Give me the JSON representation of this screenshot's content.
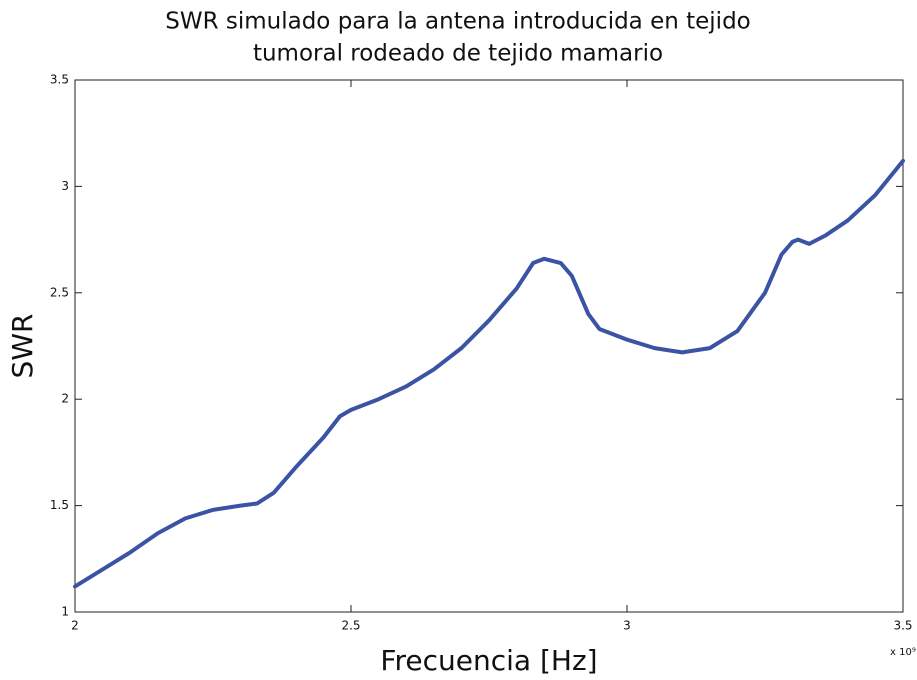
{
  "chart_data": {
    "type": "line",
    "title": [
      "SWR simulado para la antena introducida en tejido",
      "tumoral rodeado de tejido mamario"
    ],
    "x_label": "Frecuencia [Hz]",
    "y_label": "SWR",
    "x_offset_text": "x 10⁹",
    "x": [
      2.0,
      2.05,
      2.1,
      2.15,
      2.2,
      2.25,
      2.3,
      2.33,
      2.36,
      2.4,
      2.45,
      2.48,
      2.5,
      2.55,
      2.6,
      2.65,
      2.7,
      2.75,
      2.8,
      2.83,
      2.85,
      2.88,
      2.9,
      2.93,
      2.95,
      3.0,
      3.05,
      3.1,
      3.15,
      3.2,
      3.25,
      3.28,
      3.3,
      3.31,
      3.33,
      3.36,
      3.4,
      3.45,
      3.5
    ],
    "series": [
      {
        "name": "SWR",
        "color": "#3a53a4",
        "values": [
          1.12,
          1.2,
          1.28,
          1.37,
          1.44,
          1.48,
          1.5,
          1.51,
          1.56,
          1.68,
          1.82,
          1.92,
          1.95,
          2.0,
          2.06,
          2.14,
          2.24,
          2.37,
          2.52,
          2.64,
          2.66,
          2.64,
          2.58,
          2.4,
          2.33,
          2.28,
          2.24,
          2.22,
          2.24,
          2.32,
          2.5,
          2.68,
          2.74,
          2.75,
          2.73,
          2.77,
          2.84,
          2.96,
          3.12
        ]
      }
    ],
    "xlim": [
      2,
      3.5
    ],
    "xticks": [
      2,
      2.5,
      3,
      3.5
    ],
    "ylim": [
      1,
      3.5
    ],
    "yticks": [
      1,
      1.5,
      2,
      2.5,
      3,
      3.5
    ]
  }
}
